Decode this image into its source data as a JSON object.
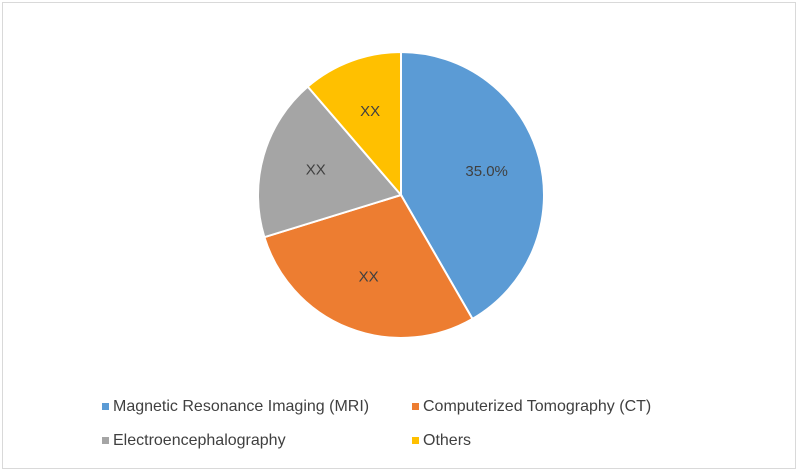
{
  "chart_data": {
    "type": "pie",
    "title": "",
    "slices": [
      {
        "name": "Magnetic Resonance Imaging (MRI)",
        "value": 35.0,
        "label": "35.0%",
        "color": "#5B9BD5"
      },
      {
        "name": "Computerized Tomography (CT)",
        "value": 24.0,
        "label": "XX",
        "color": "#ED7D31"
      },
      {
        "name": "Electroencephalography",
        "value": 15.5,
        "label": "XX",
        "color": "#A5A5A5"
      },
      {
        "name": "Others",
        "value": 9.5,
        "label": "XX",
        "color": "#FFC000"
      }
    ],
    "start_angle_deg": 0,
    "direction": "clockwise",
    "legend_position": "bottom"
  }
}
